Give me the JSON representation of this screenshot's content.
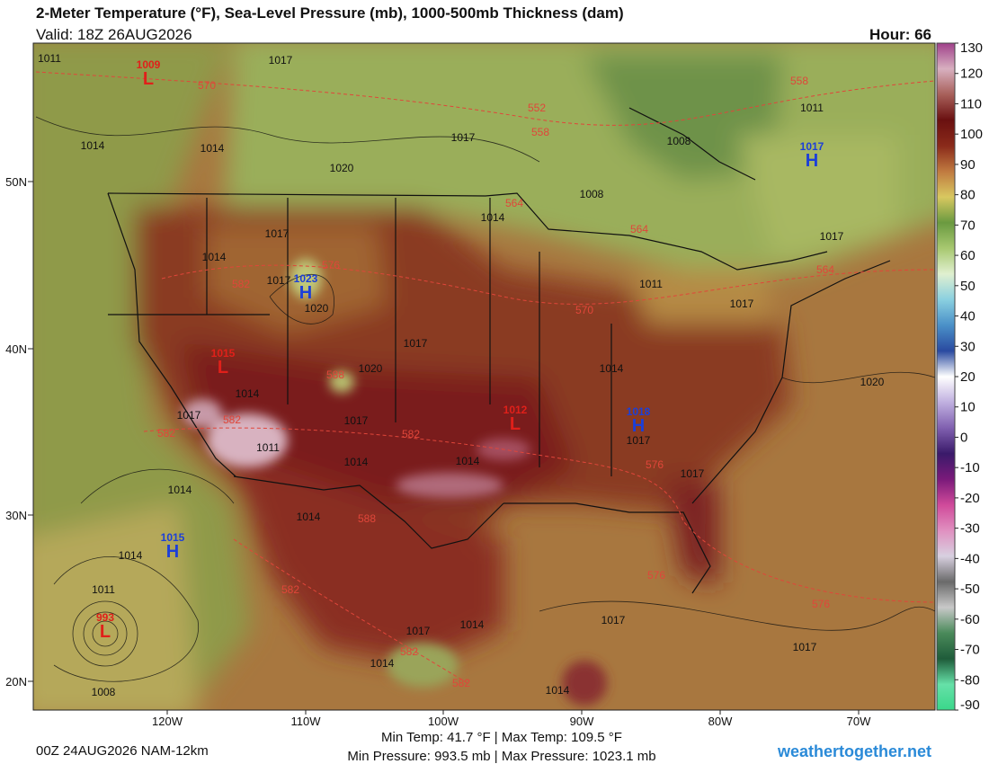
{
  "header": {
    "title": "2-Meter Temperature (°F), Sea-Level Pressure (mb), 1000-500mb Thickness (dam)",
    "valid": "Valid: 18Z 26AUG2026",
    "hour": "Hour: 66"
  },
  "map": {
    "lat_labels": [
      "50N",
      "40N",
      "30N",
      "20N"
    ],
    "lon_labels": [
      "120W",
      "110W",
      "100W",
      "90W",
      "80W",
      "70W"
    ],
    "pressure_centers": [
      {
        "type": "L",
        "value": "1009"
      },
      {
        "type": "H",
        "value": "1023"
      },
      {
        "type": "L",
        "value": "1015"
      },
      {
        "type": "L",
        "value": "1012"
      },
      {
        "type": "H",
        "value": "1018"
      },
      {
        "type": "H",
        "value": "1017"
      },
      {
        "type": "H",
        "value": "1015"
      },
      {
        "type": "L",
        "value": "993"
      }
    ],
    "isobar_labels": [
      "1011",
      "1017",
      "1014",
      "1014",
      "1020",
      "1017",
      "1008",
      "1011",
      "1008",
      "1014",
      "1017",
      "1014",
      "1017",
      "1020",
      "1017",
      "1020",
      "1014",
      "1017",
      "1011",
      "1017",
      "1020",
      "1014",
      "1017",
      "1017",
      "1011",
      "1014",
      "1014",
      "1017",
      "1017",
      "1014",
      "1014",
      "1014",
      "1011",
      "1017",
      "1014",
      "1014",
      "1017",
      "1017",
      "1014",
      "1008"
    ],
    "thickness_labels": [
      "570",
      "552",
      "558",
      "564",
      "564",
      "576",
      "582",
      "570",
      "564",
      "588",
      "582",
      "582",
      "582",
      "576",
      "588",
      "582",
      "576",
      "582",
      "582",
      "576",
      "558"
    ]
  },
  "colorbar": {
    "range": [
      -90,
      130
    ],
    "ticks": [
      130,
      120,
      110,
      100,
      90,
      80,
      70,
      60,
      50,
      40,
      30,
      20,
      10,
      0,
      -10,
      -20,
      -30,
      -40,
      -50,
      -60,
      -70,
      -80,
      -90
    ]
  },
  "footer": {
    "run": "00Z 24AUG2026 NAM-12km",
    "temps": "Min Temp:  41.7 °F | Max Temp: 109.5 °F",
    "pressures": "Min Pressure: 993.5 mb | Max Pressure: 1023.1 mb",
    "site": "weathertogether.net"
  }
}
